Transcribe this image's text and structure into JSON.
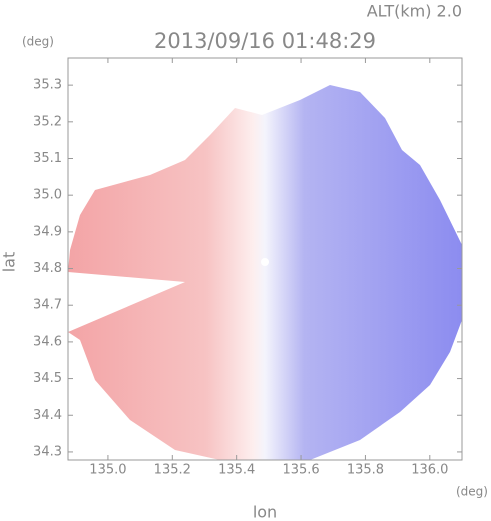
{
  "chart_data": {
    "type": "image",
    "annotation": "ALT(km) 2.0",
    "title": "2013/09/16 01:48:29",
    "y_unit": "(deg)",
    "x_unit": "(deg)",
    "xlabel": "lon",
    "ylabel": "lat",
    "xlim": [
      134.876,
      136.1
    ],
    "ylim": [
      34.278,
      35.374
    ],
    "xticks": [
      {
        "value": 135.0,
        "label": "135.0"
      },
      135.2,
      135.4,
      135.6,
      135.8,
      {
        "value": 136.0,
        "label": "136.0"
      }
    ],
    "yticks": [
      34.3,
      34.4,
      34.5,
      34.6,
      34.7,
      34.8,
      34.9,
      {
        "value": 35.0,
        "label": "35.0"
      },
      35.1,
      35.2,
      35.3
    ]
  }
}
